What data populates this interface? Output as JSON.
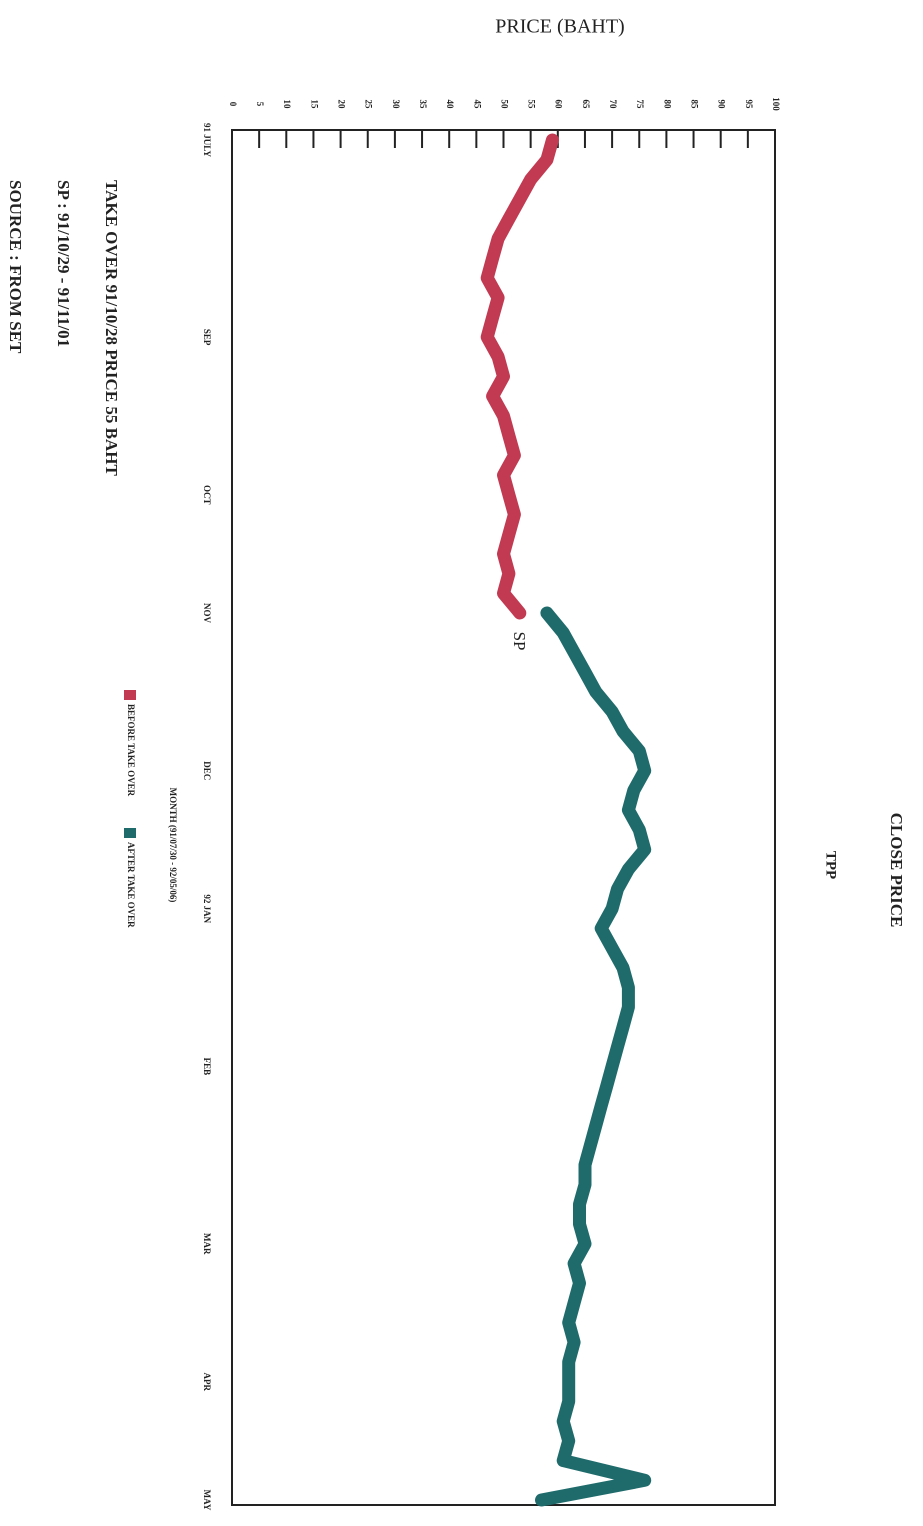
{
  "chart_data": {
    "type": "line",
    "title": "CLOSE PRICE",
    "subtitle": "TPP",
    "y_label": "PRICE (BAHT)",
    "x_label": "MONTH (91/07/30 - 92/05/06)",
    "annotation": "SP",
    "notes": [
      "TAKE OVER 91/10/28  PRICE 55 BAHT",
      "SP : 91/10/29 - 91/11/01",
      "SOURCE : FROM SET"
    ],
    "categories": [
      "91 JULY",
      null,
      null,
      null,
      null,
      null,
      null,
      null,
      null,
      null,
      "SEP",
      null,
      null,
      null,
      null,
      null,
      null,
      null,
      "OCT",
      null,
      null,
      null,
      null,
      null,
      "NOV",
      null,
      null,
      null,
      null,
      null,
      null,
      null,
      "DEC",
      null,
      null,
      null,
      null,
      null,
      null,
      "92 JAN",
      null,
      null,
      null,
      null,
      null,
      null,
      null,
      "FEB",
      null,
      null,
      null,
      null,
      null,
      null,
      null,
      null,
      "MAR",
      null,
      null,
      null,
      null,
      null,
      null,
      "APR",
      null,
      null,
      null,
      null,
      null,
      "MAY"
    ],
    "series": [
      {
        "name": "BEFORE TAKE OVER",
        "color": "#c23a52",
        "values": [
          59,
          58,
          55,
          53,
          51,
          49,
          48,
          47,
          49,
          48,
          47,
          49,
          50,
          48,
          50,
          51,
          52,
          50,
          51,
          52,
          51,
          50,
          51,
          50,
          53,
          null,
          null,
          null,
          null,
          null,
          null,
          null,
          null,
          null,
          null,
          null,
          null,
          null,
          null,
          null,
          null,
          null,
          null,
          null,
          null,
          null,
          null,
          null,
          null,
          null,
          null,
          null,
          null,
          null,
          null,
          null,
          null,
          null,
          null,
          null,
          null,
          null,
          null,
          null,
          null,
          null,
          null,
          null,
          null,
          null
        ]
      },
      {
        "name": "AFTER TAKE OVER",
        "color": "#1f6b6c",
        "values": [
          null,
          null,
          null,
          null,
          null,
          null,
          null,
          null,
          null,
          null,
          null,
          null,
          null,
          null,
          null,
          null,
          null,
          null,
          null,
          null,
          null,
          null,
          null,
          null,
          58,
          61,
          63,
          65,
          67,
          70,
          72,
          75,
          76,
          74,
          73,
          75,
          76,
          73,
          71,
          70,
          68,
          70,
          72,
          73,
          73,
          72,
          71,
          70,
          69,
          68,
          67,
          66,
          65,
          65,
          64,
          64,
          65,
          63,
          64,
          63,
          62,
          63,
          62,
          62,
          62,
          61,
          62,
          61,
          76,
          57
        ]
      }
    ],
    "ylim": [
      0,
      100
    ],
    "yticks": [
      0,
      5,
      10,
      15,
      20,
      25,
      30,
      35,
      40,
      45,
      50,
      55,
      60,
      65,
      70,
      75,
      80,
      85,
      90,
      95,
      100
    ]
  }
}
